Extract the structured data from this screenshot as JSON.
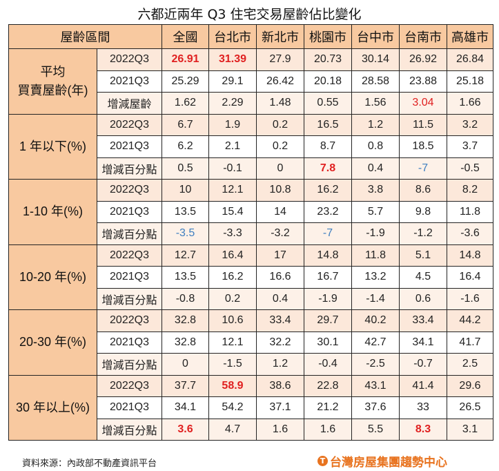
{
  "title": "六都近兩年 Q3 住宅交易屋齡佔比變化",
  "header": {
    "range_label": "屋齡區間",
    "columns": [
      "全國",
      "台北市",
      "新北市",
      "桃園市",
      "台中市",
      "台南市",
      "高雄市"
    ]
  },
  "highlight_colors": {
    "red": "#e02020",
    "blue": "#3f7fc0"
  },
  "groups": [
    {
      "label": "平均\n買賣屋齡(年)",
      "rows": [
        {
          "label": "2022Q3",
          "values": [
            {
              "v": "26.91",
              "c": "redb"
            },
            {
              "v": "31.39",
              "c": "redb"
            },
            {
              "v": "27.9"
            },
            {
              "v": "20.73"
            },
            {
              "v": "30.14"
            },
            {
              "v": "26.92"
            },
            {
              "v": "26.84"
            }
          ]
        },
        {
          "label": "2021Q3",
          "values": [
            {
              "v": "25.29"
            },
            {
              "v": "29.1"
            },
            {
              "v": "26.42"
            },
            {
              "v": "20.18"
            },
            {
              "v": "28.58"
            },
            {
              "v": "23.88"
            },
            {
              "v": "25.18"
            }
          ]
        },
        {
          "label": "增減屋齡",
          "values": [
            {
              "v": "1.62"
            },
            {
              "v": "2.29"
            },
            {
              "v": "1.48"
            },
            {
              "v": "0.55"
            },
            {
              "v": "1.56"
            },
            {
              "v": "3.04",
              "c": "red"
            },
            {
              "v": "1.66"
            }
          ]
        }
      ]
    },
    {
      "label": "1 年以下(%)",
      "rows": [
        {
          "label": "2022Q3",
          "values": [
            {
              "v": "6.7"
            },
            {
              "v": "1.9"
            },
            {
              "v": "0.2"
            },
            {
              "v": "16.5"
            },
            {
              "v": "1.2"
            },
            {
              "v": "11.5"
            },
            {
              "v": "3.2"
            }
          ]
        },
        {
          "label": "2021Q3",
          "values": [
            {
              "v": "6.2"
            },
            {
              "v": "2.1"
            },
            {
              "v": "0.2"
            },
            {
              "v": "8.7"
            },
            {
              "v": "0.8"
            },
            {
              "v": "18.5"
            },
            {
              "v": "3.7"
            }
          ]
        },
        {
          "label": "增減百分點",
          "values": [
            {
              "v": "0.5"
            },
            {
              "v": "-0.1"
            },
            {
              "v": "0"
            },
            {
              "v": "7.8",
              "c": "redb"
            },
            {
              "v": "0.4"
            },
            {
              "v": "-7",
              "c": "blue"
            },
            {
              "v": "-0.5"
            }
          ]
        }
      ]
    },
    {
      "label": "1-10 年(%)",
      "rows": [
        {
          "label": "2022Q3",
          "values": [
            {
              "v": "10"
            },
            {
              "v": "12.1"
            },
            {
              "v": "10.8"
            },
            {
              "v": "16.2"
            },
            {
              "v": "3.8"
            },
            {
              "v": "8.6"
            },
            {
              "v": "8.2"
            }
          ]
        },
        {
          "label": "2021Q3",
          "values": [
            {
              "v": "13.5"
            },
            {
              "v": "15.4"
            },
            {
              "v": "14"
            },
            {
              "v": "23.2"
            },
            {
              "v": "5.7"
            },
            {
              "v": "9.8"
            },
            {
              "v": "11.8"
            }
          ]
        },
        {
          "label": "增減百分點",
          "values": [
            {
              "v": "-3.5",
              "c": "blue"
            },
            {
              "v": "-3.3"
            },
            {
              "v": "-3.2"
            },
            {
              "v": "-7",
              "c": "blue"
            },
            {
              "v": "-1.9"
            },
            {
              "v": "-1.2"
            },
            {
              "v": "-3.6"
            }
          ]
        }
      ]
    },
    {
      "label": "10-20 年(%)",
      "rows": [
        {
          "label": "2022Q3",
          "values": [
            {
              "v": "12.7"
            },
            {
              "v": "16.4"
            },
            {
              "v": "17"
            },
            {
              "v": "14.8"
            },
            {
              "v": "11.8"
            },
            {
              "v": "5.1"
            },
            {
              "v": "14.8"
            }
          ]
        },
        {
          "label": "2021Q3",
          "values": [
            {
              "v": "13.5"
            },
            {
              "v": "16.2"
            },
            {
              "v": "16.6"
            },
            {
              "v": "16.7"
            },
            {
              "v": "13.2"
            },
            {
              "v": "4.5"
            },
            {
              "v": "16.4"
            }
          ]
        },
        {
          "label": "增減百分點",
          "values": [
            {
              "v": "-0.8"
            },
            {
              "v": "0.2"
            },
            {
              "v": "0.4"
            },
            {
              "v": "-1.9"
            },
            {
              "v": "-1.4"
            },
            {
              "v": "0.6"
            },
            {
              "v": "-1.6"
            }
          ]
        }
      ]
    },
    {
      "label": "20-30 年(%)",
      "rows": [
        {
          "label": "2022Q3",
          "values": [
            {
              "v": "32.8"
            },
            {
              "v": "10.6"
            },
            {
              "v": "33.4"
            },
            {
              "v": "29.7"
            },
            {
              "v": "40.2"
            },
            {
              "v": "33.4"
            },
            {
              "v": "44.2"
            }
          ]
        },
        {
          "label": "2021Q3",
          "values": [
            {
              "v": "32.8"
            },
            {
              "v": "12.1"
            },
            {
              "v": "32.2"
            },
            {
              "v": "30.1"
            },
            {
              "v": "42.7"
            },
            {
              "v": "34.1"
            },
            {
              "v": "41.7"
            }
          ]
        },
        {
          "label": "增減百分點",
          "values": [
            {
              "v": "0"
            },
            {
              "v": "-1.5"
            },
            {
              "v": "1.2"
            },
            {
              "v": "-0.4"
            },
            {
              "v": "-2.5"
            },
            {
              "v": "-0.7"
            },
            {
              "v": "2.5"
            }
          ]
        }
      ]
    },
    {
      "label": "30 年以上(%)",
      "rows": [
        {
          "label": "2022Q3",
          "values": [
            {
              "v": "37.7"
            },
            {
              "v": "58.9",
              "c": "redb"
            },
            {
              "v": "38.6"
            },
            {
              "v": "22.8"
            },
            {
              "v": "43.1"
            },
            {
              "v": "41.4"
            },
            {
              "v": "29.6"
            }
          ]
        },
        {
          "label": "2021Q3",
          "values": [
            {
              "v": "34.1"
            },
            {
              "v": "54.2"
            },
            {
              "v": "37.1"
            },
            {
              "v": "21.2"
            },
            {
              "v": "37.6"
            },
            {
              "v": "33"
            },
            {
              "v": "26.5"
            }
          ]
        },
        {
          "label": "增減百分點",
          "values": [
            {
              "v": "3.6",
              "c": "redb"
            },
            {
              "v": "4.7"
            },
            {
              "v": "1.6"
            },
            {
              "v": "1.6"
            },
            {
              "v": "5.5"
            },
            {
              "v": "8.3",
              "c": "redb"
            },
            {
              "v": "3.1"
            }
          ]
        }
      ]
    }
  ],
  "footer": {
    "source": "資料來源：內政部不動產資訊平台",
    "logo_text": "台灣房屋集團趨勢中心",
    "logo_mark": "T"
  }
}
